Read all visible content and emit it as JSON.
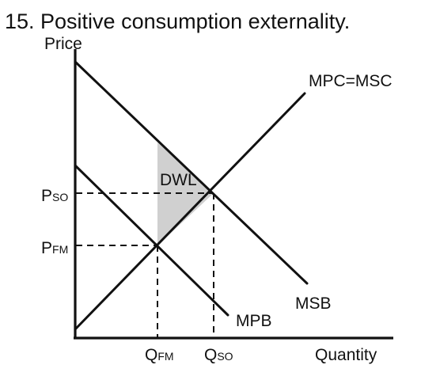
{
  "title": "15. Positive consumption externality.",
  "axes": {
    "y_label": "Price",
    "x_label": "Quantity"
  },
  "curves": {
    "supply": "MPC=MSC",
    "social_benefit": "MSB",
    "private_benefit": "MPB"
  },
  "area_label": "DWL",
  "prices": {
    "so": {
      "main": "P",
      "sub": "SO"
    },
    "fm": {
      "main": "P",
      "sub": "FM"
    }
  },
  "quantities": {
    "fm": {
      "main": "Q",
      "sub": "FM"
    },
    "so": {
      "main": "Q",
      "sub": "SO"
    }
  },
  "colors": {
    "dwl_fill": "#d0d0d0",
    "ink": "#111111"
  }
}
